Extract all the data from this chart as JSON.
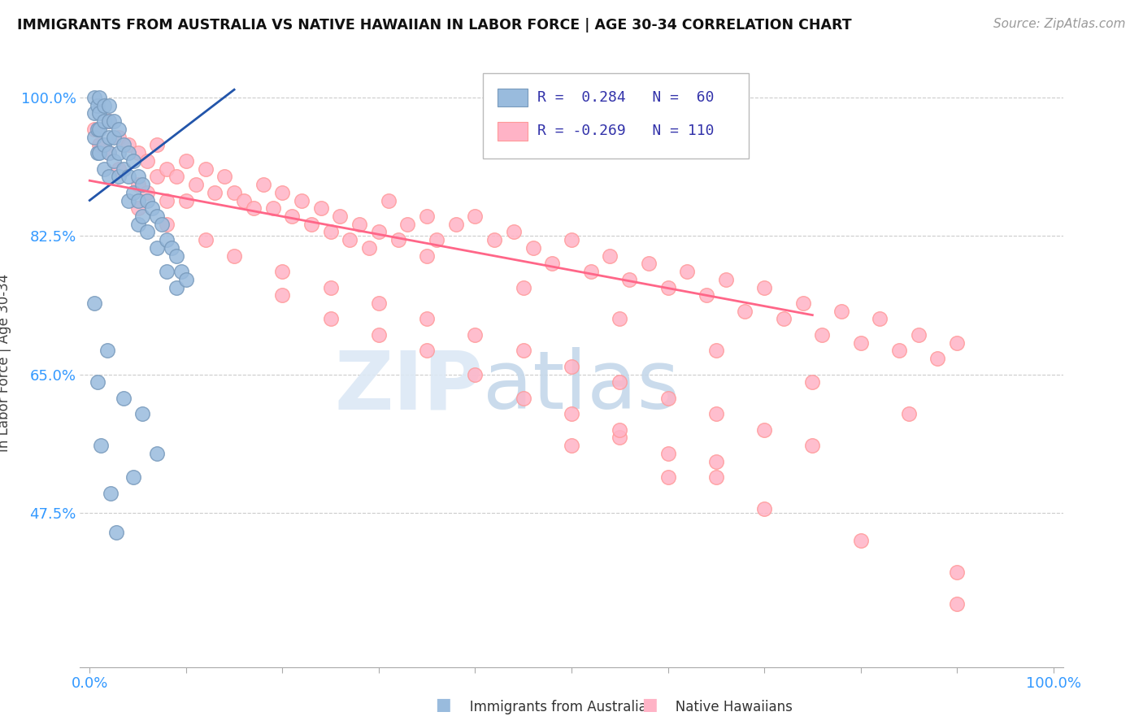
{
  "title": "IMMIGRANTS FROM AUSTRALIA VS NATIVE HAWAIIAN IN LABOR FORCE | AGE 30-34 CORRELATION CHART",
  "source": "Source: ZipAtlas.com",
  "ylabel": "In Labor Force | Age 30-34",
  "xlim": [
    -0.01,
    1.01
  ],
  "ylim": [
    0.28,
    1.05
  ],
  "yticks": [
    0.475,
    0.65,
    0.825,
    1.0
  ],
  "ytick_labels": [
    "47.5%",
    "65.0%",
    "82.5%",
    "100.0%"
  ],
  "blue_R": 0.284,
  "blue_N": 60,
  "pink_R": -0.269,
  "pink_N": 110,
  "blue_color": "#99BBDD",
  "pink_color": "#FFB3C6",
  "blue_edge_color": "#7799BB",
  "pink_edge_color": "#FF9999",
  "blue_line_color": "#2255AA",
  "pink_line_color": "#FF6688",
  "legend_label_blue": "Immigrants from Australia",
  "legend_label_pink": "Native Hawaiians",
  "blue_scatter_x": [
    0.005,
    0.005,
    0.005,
    0.008,
    0.008,
    0.008,
    0.01,
    0.01,
    0.01,
    0.01,
    0.015,
    0.015,
    0.015,
    0.015,
    0.02,
    0.02,
    0.02,
    0.02,
    0.02,
    0.025,
    0.025,
    0.025,
    0.03,
    0.03,
    0.03,
    0.035,
    0.035,
    0.04,
    0.04,
    0.04,
    0.045,
    0.045,
    0.05,
    0.05,
    0.05,
    0.055,
    0.055,
    0.06,
    0.06,
    0.065,
    0.07,
    0.07,
    0.075,
    0.08,
    0.08,
    0.085,
    0.09,
    0.09,
    0.095,
    0.1,
    0.005,
    0.008,
    0.012,
    0.018,
    0.022,
    0.028,
    0.035,
    0.045,
    0.055,
    0.07
  ],
  "blue_scatter_y": [
    1.0,
    0.98,
    0.95,
    0.99,
    0.96,
    0.93,
    1.0,
    0.98,
    0.96,
    0.93,
    0.99,
    0.97,
    0.94,
    0.91,
    0.99,
    0.97,
    0.95,
    0.93,
    0.9,
    0.97,
    0.95,
    0.92,
    0.96,
    0.93,
    0.9,
    0.94,
    0.91,
    0.93,
    0.9,
    0.87,
    0.92,
    0.88,
    0.9,
    0.87,
    0.84,
    0.89,
    0.85,
    0.87,
    0.83,
    0.86,
    0.85,
    0.81,
    0.84,
    0.82,
    0.78,
    0.81,
    0.8,
    0.76,
    0.78,
    0.77,
    0.74,
    0.64,
    0.56,
    0.68,
    0.5,
    0.45,
    0.62,
    0.52,
    0.6,
    0.55
  ],
  "pink_scatter_x": [
    0.005,
    0.01,
    0.02,
    0.02,
    0.03,
    0.03,
    0.04,
    0.05,
    0.05,
    0.06,
    0.06,
    0.07,
    0.07,
    0.08,
    0.08,
    0.09,
    0.1,
    0.1,
    0.11,
    0.12,
    0.13,
    0.14,
    0.15,
    0.16,
    0.17,
    0.18,
    0.19,
    0.2,
    0.21,
    0.22,
    0.23,
    0.24,
    0.25,
    0.26,
    0.27,
    0.28,
    0.29,
    0.3,
    0.31,
    0.32,
    0.33,
    0.35,
    0.36,
    0.38,
    0.4,
    0.42,
    0.44,
    0.46,
    0.48,
    0.5,
    0.52,
    0.54,
    0.56,
    0.58,
    0.6,
    0.62,
    0.64,
    0.66,
    0.68,
    0.7,
    0.72,
    0.74,
    0.76,
    0.78,
    0.8,
    0.82,
    0.84,
    0.86,
    0.88,
    0.9,
    0.05,
    0.08,
    0.12,
    0.15,
    0.2,
    0.25,
    0.3,
    0.35,
    0.4,
    0.45,
    0.5,
    0.55,
    0.6,
    0.65,
    0.7,
    0.75,
    0.2,
    0.25,
    0.3,
    0.35,
    0.4,
    0.45,
    0.5,
    0.55,
    0.6,
    0.65,
    0.35,
    0.45,
    0.55,
    0.65,
    0.75,
    0.85,
    0.5,
    0.6,
    0.7,
    0.8,
    0.9,
    0.55,
    0.65,
    0.9
  ],
  "pink_scatter_y": [
    0.96,
    0.94,
    0.97,
    0.93,
    0.95,
    0.91,
    0.94,
    0.93,
    0.89,
    0.92,
    0.88,
    0.94,
    0.9,
    0.91,
    0.87,
    0.9,
    0.92,
    0.87,
    0.89,
    0.91,
    0.88,
    0.9,
    0.88,
    0.87,
    0.86,
    0.89,
    0.86,
    0.88,
    0.85,
    0.87,
    0.84,
    0.86,
    0.83,
    0.85,
    0.82,
    0.84,
    0.81,
    0.83,
    0.87,
    0.82,
    0.84,
    0.85,
    0.82,
    0.84,
    0.85,
    0.82,
    0.83,
    0.81,
    0.79,
    0.82,
    0.78,
    0.8,
    0.77,
    0.79,
    0.76,
    0.78,
    0.75,
    0.77,
    0.73,
    0.76,
    0.72,
    0.74,
    0.7,
    0.73,
    0.69,
    0.72,
    0.68,
    0.7,
    0.67,
    0.69,
    0.86,
    0.84,
    0.82,
    0.8,
    0.78,
    0.76,
    0.74,
    0.72,
    0.7,
    0.68,
    0.66,
    0.64,
    0.62,
    0.6,
    0.58,
    0.56,
    0.75,
    0.72,
    0.7,
    0.68,
    0.65,
    0.62,
    0.6,
    0.57,
    0.55,
    0.52,
    0.8,
    0.76,
    0.72,
    0.68,
    0.64,
    0.6,
    0.56,
    0.52,
    0.48,
    0.44,
    0.4,
    0.58,
    0.54,
    0.36
  ],
  "blue_line_x0": 0.0,
  "blue_line_x1": 0.15,
  "blue_line_y0": 0.87,
  "blue_line_y1": 1.01,
  "pink_line_x0": 0.0,
  "pink_line_x1": 0.75,
  "pink_line_y0": 0.895,
  "pink_line_y1": 0.725
}
